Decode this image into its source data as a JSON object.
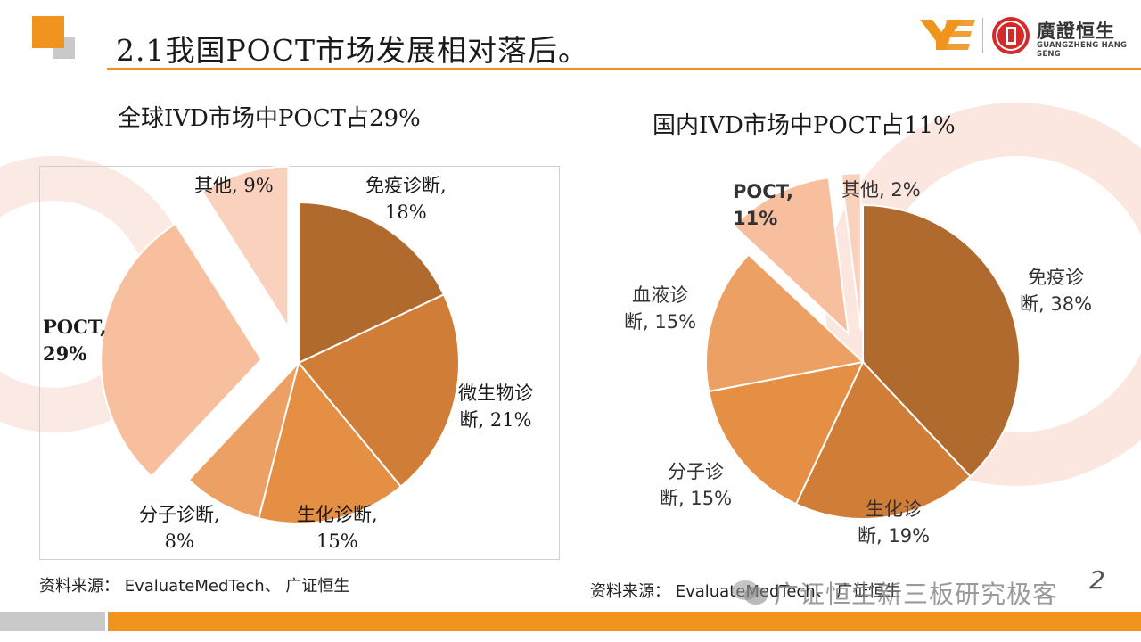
{
  "slide": {
    "title": "2.1我国POCT市场发展相对落后。",
    "logo": {
      "cn": "廣證恒生",
      "en": "GUANGZHENG HANG SENG"
    },
    "page_number": "2",
    "watermark": "广证恒生新三板研究极客"
  },
  "colors": {
    "accent": "#f0941e",
    "gray": "#c9c9c9",
    "slice_immune": "#b06a2e",
    "slice_micro": "#d07d38",
    "slice_biochem": "#e58f45",
    "slice_molecular": "#eda063",
    "slice_blood": "#f0a872",
    "slice_poct": "#f7bf9e",
    "slice_other": "#f9d1bd"
  },
  "chart_data": [
    {
      "type": "pie",
      "title": "全球IVD市场中POCT占29%",
      "slices": [
        {
          "name": "免疫诊断",
          "value": 18,
          "label_line1": "免疫诊断,",
          "label_line2": "18%"
        },
        {
          "name": "微生物诊断",
          "value": 21,
          "label_line1": "微生物诊",
          "label_line2": "断, 21%"
        },
        {
          "name": "生化诊断",
          "value": 15,
          "label_line1": "生化诊断,",
          "label_line2": "15%"
        },
        {
          "name": "分子诊断",
          "value": 8,
          "label_line1": "分子诊断,",
          "label_line2": "8%"
        },
        {
          "name": "POCT",
          "value": 29,
          "label_line1": "POCT,",
          "label_line2": "29%",
          "exploded": true
        },
        {
          "name": "其他",
          "value": 9,
          "label_line1": "其他, 9%",
          "label_line2": "",
          "exploded": true
        }
      ],
      "source": "资料来源： EvaluateMedTech、 广证恒生"
    },
    {
      "type": "pie",
      "title": "国内IVD市场中POCT占11%",
      "slices": [
        {
          "name": "免疫诊断",
          "value": 38,
          "label_line1": "免疫诊",
          "label_line2": "断, 38%"
        },
        {
          "name": "生化诊断",
          "value": 19,
          "label_line1": "生化诊",
          "label_line2": "断, 19%"
        },
        {
          "name": "分子诊断",
          "value": 15,
          "label_line1": "分子诊",
          "label_line2": "断, 15%"
        },
        {
          "name": "血液诊断",
          "value": 15,
          "label_line1": "血液诊",
          "label_line2": "断, 15%"
        },
        {
          "name": "POCT",
          "value": 11,
          "label_line1": "POCT,",
          "label_line2": "11%",
          "exploded": true
        },
        {
          "name": "其他",
          "value": 2,
          "label_line1": "其他, 2%",
          "label_line2": "",
          "exploded": true
        }
      ],
      "source": "资料来源： EvaluateMedTech、 广证恒生"
    }
  ]
}
